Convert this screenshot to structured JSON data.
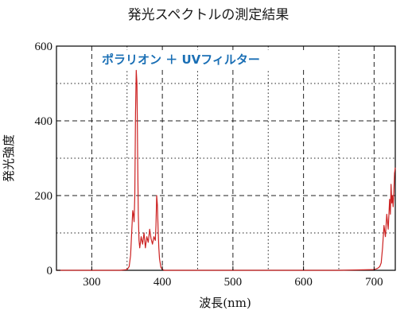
{
  "chart_data": {
    "type": "line",
    "title": "発光スペクトルの測定結果",
    "xlabel": "波長(nm)",
    "ylabel": "発光強度",
    "xlim": [
      250,
      730
    ],
    "ylim": [
      0,
      600
    ],
    "x_ticks": [
      300,
      400,
      500,
      600,
      700
    ],
    "y_ticks": [
      0,
      200,
      400,
      600
    ],
    "x_minor_grid": [
      350,
      450,
      550,
      650
    ],
    "y_minor_grid": [
      100,
      300,
      500
    ],
    "grid": true,
    "annotation": "ポラリオン ＋ UVフィルター",
    "series": [
      {
        "color": "#cc2222",
        "x": [
          250,
          300,
          340,
          350,
          353,
          355,
          357,
          358,
          359,
          360,
          361,
          362,
          363,
          364,
          365,
          366,
          367,
          368,
          370,
          372,
          374,
          376,
          378,
          380,
          382,
          384,
          386,
          388,
          390,
          391,
          392,
          393,
          394,
          395,
          396,
          398,
          400,
          403,
          406,
          410,
          450,
          500,
          550,
          600,
          650,
          700,
          705,
          708,
          710,
          712,
          714,
          716,
          718,
          720,
          722,
          723,
          724,
          725,
          726,
          727,
          728,
          729,
          730
        ],
        "y": [
          0,
          0,
          0,
          2,
          10,
          40,
          120,
          160,
          150,
          130,
          200,
          420,
          535,
          500,
          300,
          150,
          80,
          60,
          90,
          70,
          100,
          60,
          90,
          75,
          110,
          85,
          70,
          90,
          80,
          120,
          200,
          175,
          110,
          60,
          30,
          8,
          2,
          0,
          0,
          0,
          0,
          0,
          0,
          0,
          0,
          2,
          5,
          10,
          20,
          60,
          120,
          90,
          150,
          110,
          190,
          150,
          230,
          180,
          200,
          170,
          210,
          260,
          275
        ]
      }
    ]
  },
  "colors": {
    "line": "#cc2222",
    "annotation": "#1a6fb5",
    "grid": "#222222"
  }
}
